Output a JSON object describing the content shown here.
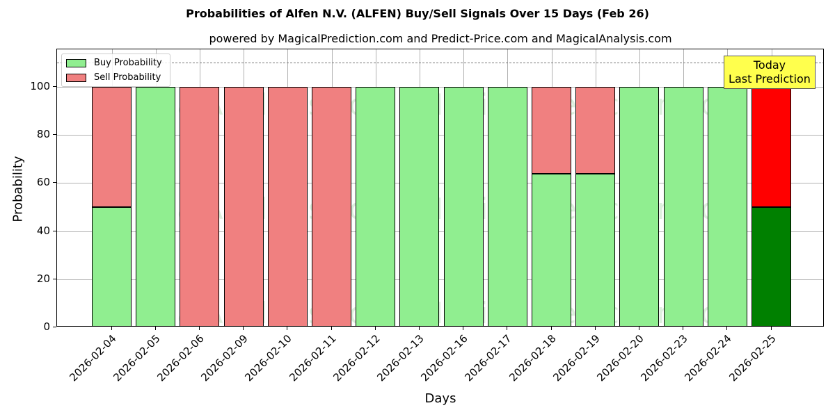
{
  "chart_data": {
    "type": "bar",
    "stacked": true,
    "title": "Probabilities of Alfen N.V. (ALFEN) Buy/Sell Signals Over 15 Days (Feb 26)",
    "subtitle": "powered by MagicalPrediction.com and Predict-Price.com and MagicalAnalysis.com",
    "xlabel": "Days",
    "ylabel": "Probability",
    "ylim": [
      0,
      115
    ],
    "yticks": [
      0,
      20,
      40,
      60,
      80,
      100
    ],
    "grid": true,
    "legend_position": "upper left",
    "categories": [
      "2026-02-04",
      "2026-02-05",
      "2026-02-06",
      "2026-02-09",
      "2026-02-10",
      "2026-02-11",
      "2026-02-12",
      "2026-02-13",
      "2026-02-16",
      "2026-02-17",
      "2026-02-18",
      "2026-02-19",
      "2026-02-20",
      "2026-02-23",
      "2026-02-24",
      "2026-02-25"
    ],
    "series": [
      {
        "name": "Buy Probability",
        "color": "#90ee90",
        "values": [
          50,
          100,
          0,
          0,
          0,
          0,
          100,
          100,
          100,
          100,
          64,
          64,
          100,
          100,
          100,
          50
        ]
      },
      {
        "name": "Sell Probability",
        "color": "#f08080",
        "values": [
          50,
          0,
          100,
          100,
          100,
          100,
          0,
          0,
          0,
          0,
          36,
          36,
          0,
          0,
          0,
          50
        ]
      }
    ],
    "highlight": {
      "index": 15,
      "buy_color": "#008000",
      "sell_color": "#ff0000"
    },
    "reference_line": {
      "y": 110,
      "style": "dashed"
    },
    "annotation": {
      "line1": "Today",
      "line2": "Last Prediction"
    },
    "watermarks": [
      "MagicalAnalysis.com",
      "MagicalPrediction.com"
    ]
  }
}
